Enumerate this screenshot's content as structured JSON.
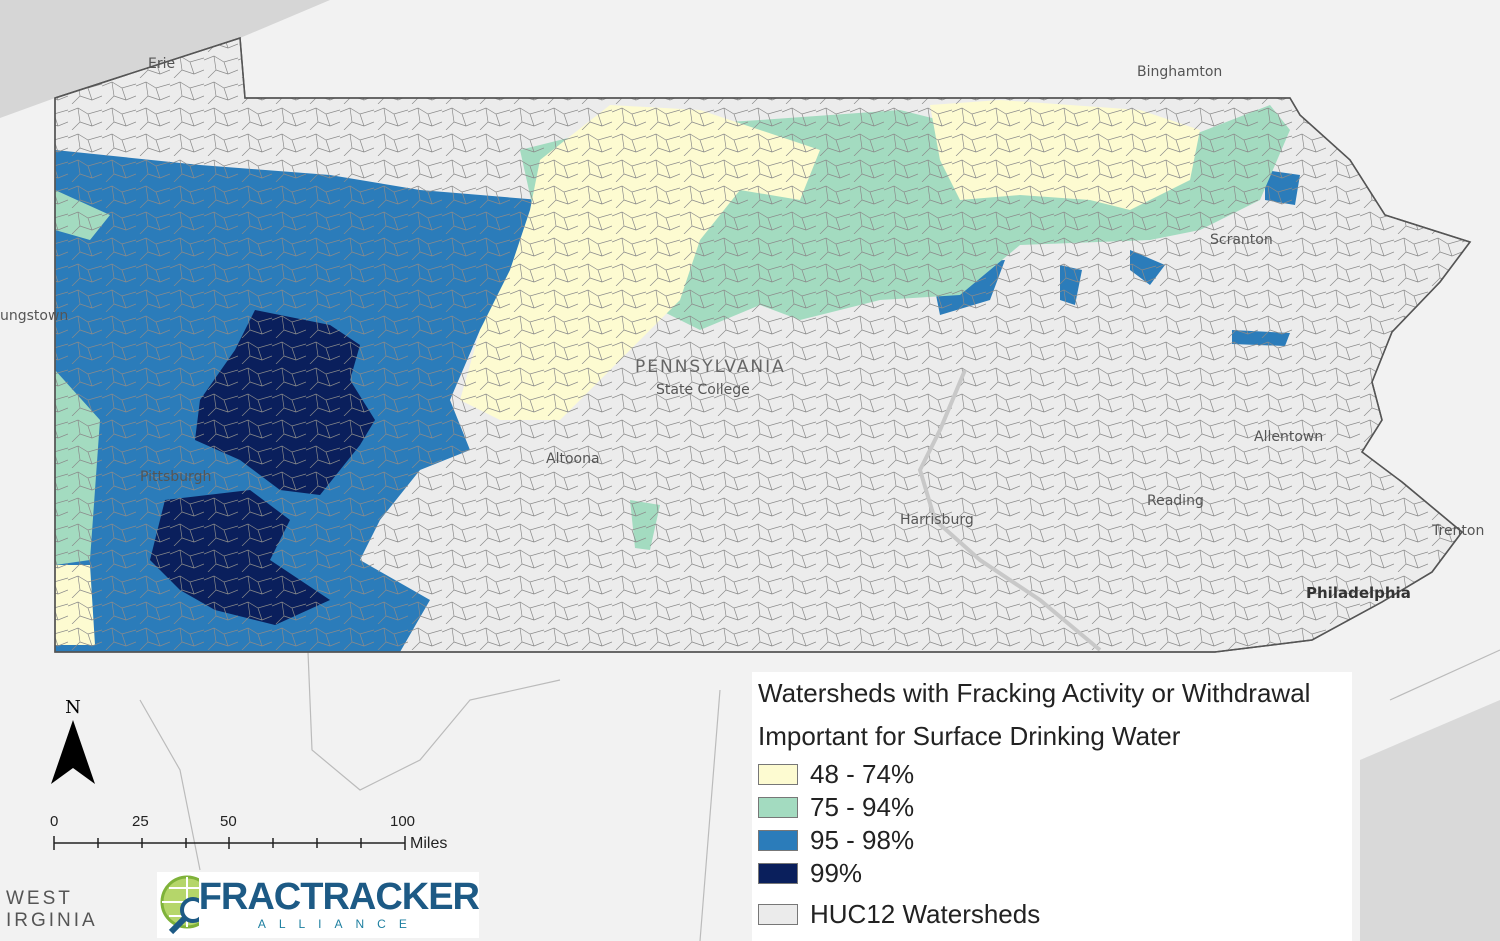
{
  "map": {
    "cities": [
      "Erie",
      "Binghamton",
      "ungstown",
      "Pittsburgh",
      "Altoona",
      "State College",
      "Harrisburg",
      "Scranton",
      "Allentown",
      "Reading",
      "Trenton",
      "Philadelphia"
    ],
    "state_label": "PENNSYLVANIA",
    "region_label": [
      "WEST",
      "IRGINIA"
    ]
  },
  "legend": {
    "title_line1": "Watersheds with Fracking Activity or Withdrawal",
    "title_line2": "Important for Surface Drinking Water",
    "items": [
      {
        "label": "48 - 74%",
        "color": "#fdfbd1"
      },
      {
        "label": "75 - 94%",
        "color": "#a3dbc0"
      },
      {
        "label": "95 - 98%",
        "color": "#2b7cba"
      },
      {
        "label": "99%",
        "color": "#0a1f5c"
      },
      {
        "label": "HUC12 Watersheds",
        "color": "#ebebeb"
      }
    ]
  },
  "north_arrow": {
    "label": "N"
  },
  "scale_bar": {
    "ticks": [
      "0",
      "25",
      "50",
      "100"
    ],
    "unit": "Miles"
  },
  "logo": {
    "name": "FRACTRACKER",
    "sub": "ALLIANCE"
  }
}
